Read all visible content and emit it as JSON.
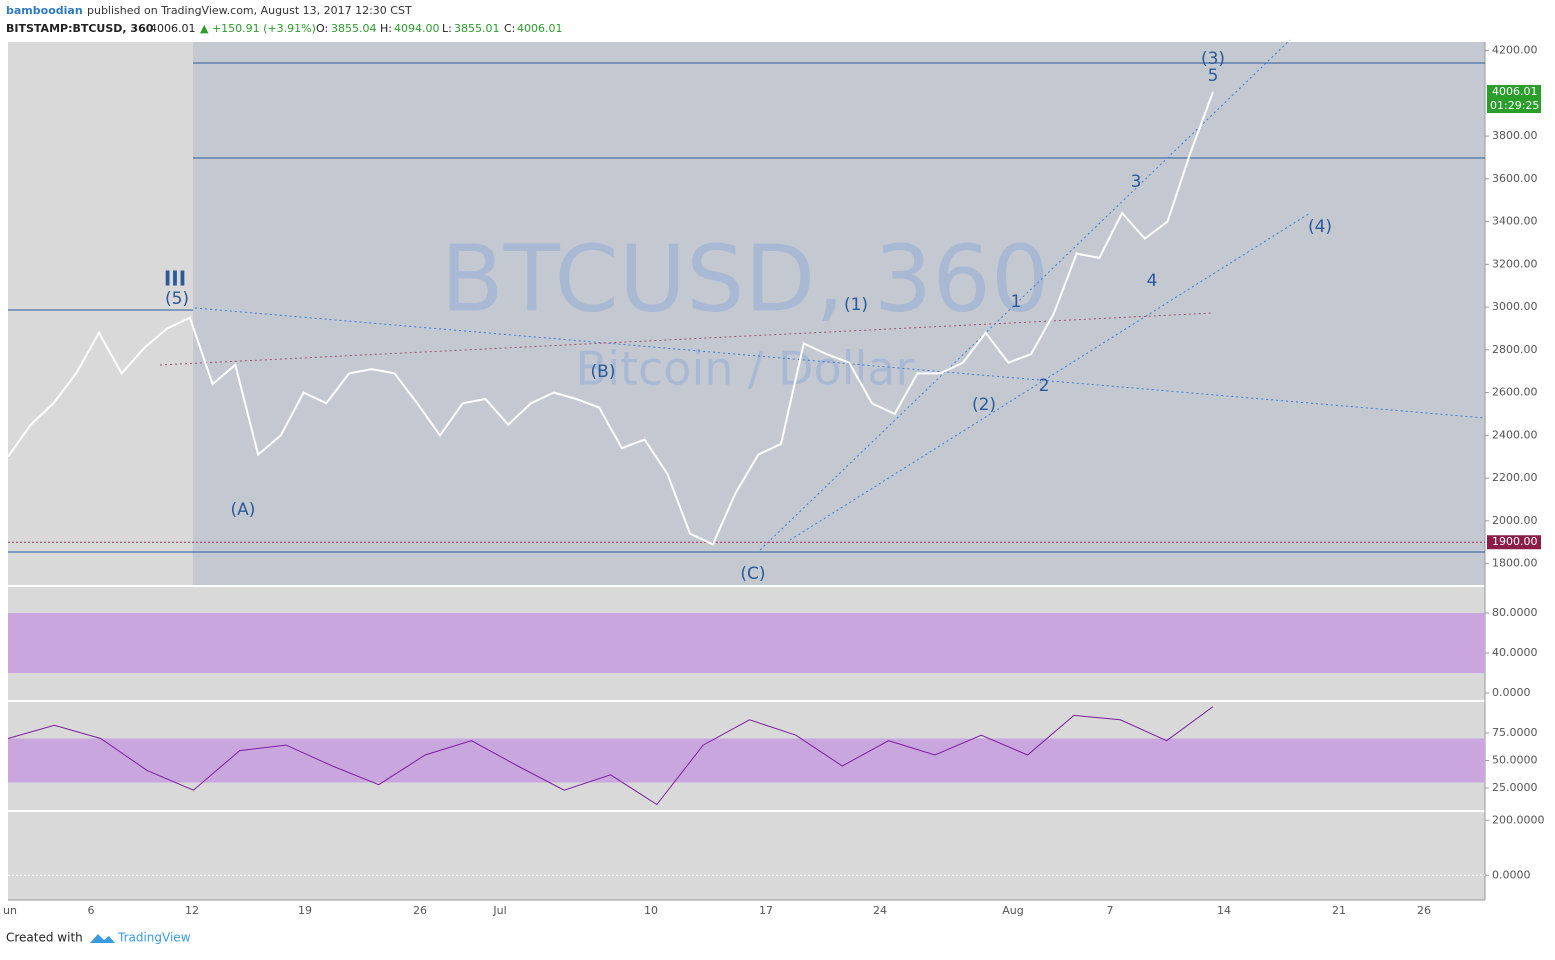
{
  "header": {
    "author": "bamboodian",
    "published": "published on TradingView.com, August 13, 2017 12:30 CST",
    "symbol": "BITSTAMP:BTCUSD, 360",
    "last": "4006.01",
    "change": "▲ +150.91 (+3.91%)",
    "open_label": "O:",
    "open": "3855.04",
    "high_label": "H:",
    "high": "4094.00",
    "low_label": "L:",
    "low": "3855.01",
    "close_label": "C:",
    "close": "4006.01"
  },
  "chart_data": {
    "type": "line",
    "watermark": "BTCUSD, 360",
    "watermark_sub": "Bitcoin / Dollar",
    "color": "#ffffff",
    "values": [
      2300,
      2450,
      2550,
      2690,
      2880,
      2690,
      2810,
      2900,
      2950,
      2640,
      2730,
      2310,
      2400,
      2600,
      2550,
      2690,
      2710,
      2690,
      2550,
      2400,
      2550,
      2570,
      2450,
      2550,
      2600,
      2570,
      2530,
      2340,
      2380,
      2220,
      1940,
      1890,
      2130,
      2310,
      2360,
      2830,
      2780,
      2740,
      2550,
      2500,
      2690,
      2690,
      2740,
      2880,
      2740,
      2780,
      2970,
      3250,
      3230,
      3440,
      3320,
      3400,
      3720,
      4006
    ],
    "ylim": [
      1700,
      4240
    ],
    "yticks": [
      {
        "value": 1800,
        "label": "1800.00"
      },
      {
        "value": 2000,
        "label": "2000.00"
      },
      {
        "value": 2200,
        "label": "2200.00"
      },
      {
        "value": 2400,
        "label": "2400.00"
      },
      {
        "value": 2600,
        "label": "2600.00"
      },
      {
        "value": 2800,
        "label": "2800.00"
      },
      {
        "value": 3000,
        "label": "3000.00"
      },
      {
        "value": 3200,
        "label": "3200.00"
      },
      {
        "value": 3400,
        "label": "3400.00"
      },
      {
        "value": 3600,
        "label": "3600.00"
      },
      {
        "value": 3800,
        "label": "3800.00"
      },
      {
        "value": 4200,
        "label": "4200.00"
      }
    ],
    "price_tag": {
      "value": 4006.01,
      "label": "4006.01"
    },
    "countdown": "01:29:25",
    "level": {
      "value": 1900,
      "label": "1900.00"
    },
    "waves": [
      "III",
      "(5)",
      "(A)",
      "(B)",
      "(C)",
      "(1)",
      "(2)",
      "1",
      "2",
      "3",
      "4",
      "5",
      "(3)",
      "(4)"
    ],
    "x_labels": [
      "un",
      "6",
      "12",
      "19",
      "26",
      "Jul",
      "10",
      "17",
      "24",
      "Aug",
      "7",
      "14",
      "21",
      "26"
    ]
  },
  "stoch": {
    "ylim": [
      0,
      100
    ],
    "yticks": [
      {
        "value": 80,
        "label": "80.0000"
      },
      {
        "value": 40,
        "label": "40.0000"
      },
      {
        "value": 0,
        "label": "0.0000"
      }
    ],
    "band": [
      20,
      80
    ]
  },
  "rsi": {
    "values": [
      70,
      82,
      70,
      41,
      23,
      59,
      64,
      45,
      28,
      55,
      68,
      45,
      23,
      37,
      10,
      64,
      87,
      73,
      45,
      68,
      55,
      73,
      55,
      91,
      87,
      68,
      99
    ],
    "ylim": [
      0,
      100
    ],
    "yticks": [
      {
        "value": 75,
        "label": "75.0000"
      },
      {
        "value": 50,
        "label": "50.0000"
      },
      {
        "value": 25,
        "label": "25.0000"
      }
    ],
    "band": [
      30,
      70
    ]
  },
  "macd": {
    "yticks": [
      {
        "value": 200,
        "label": "200.0000"
      },
      {
        "value": 0,
        "label": "0.0000"
      }
    ],
    "ylim": [
      -90,
      230
    ]
  },
  "footer": {
    "created": "Created with",
    "brand": "TradingView"
  }
}
